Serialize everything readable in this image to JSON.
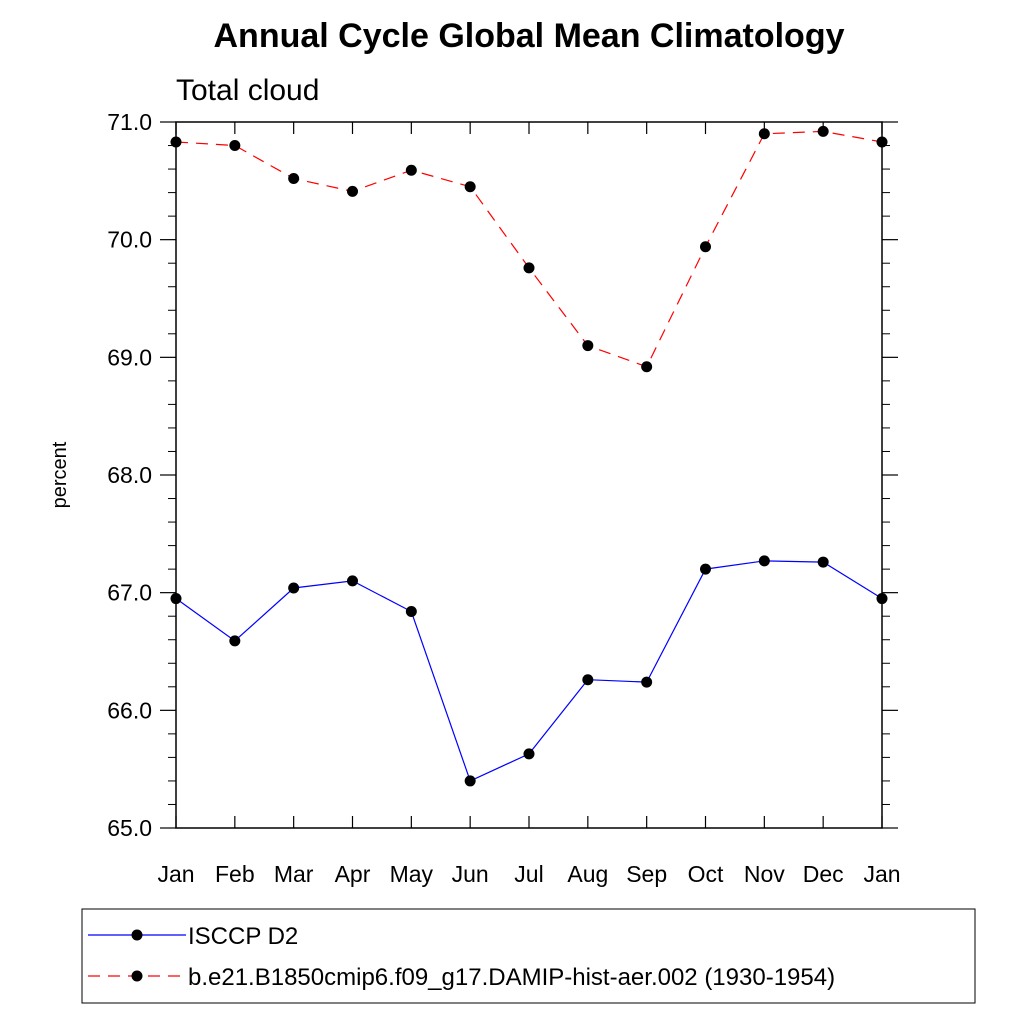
{
  "chart_data": {
    "type": "line",
    "title": "Annual Cycle Global Mean Climatology",
    "subtitle": "Total cloud",
    "xlabel": "",
    "ylabel": "percent",
    "categories": [
      "Jan",
      "Feb",
      "Mar",
      "Apr",
      "May",
      "Jun",
      "Jul",
      "Aug",
      "Sep",
      "Oct",
      "Nov",
      "Dec",
      "Jan"
    ],
    "ylim": [
      65.0,
      71.0
    ],
    "yticks": [
      "65.0",
      "66.0",
      "67.0",
      "68.0",
      "69.0",
      "70.0",
      "71.0"
    ],
    "grid": false,
    "legend_position": "bottom",
    "series": [
      {
        "name": "ISCCP D2",
        "color": "#0000ff",
        "dash": "solid",
        "marker": "filled-circle",
        "values": [
          66.95,
          66.59,
          67.04,
          67.1,
          66.84,
          65.4,
          65.63,
          66.26,
          66.24,
          67.2,
          67.27,
          67.26,
          66.95
        ]
      },
      {
        "name": "b.e21.B1850cmip6.f09_g17.DAMIP-hist-aer.002 (1930-1954)",
        "color": "#ff0000",
        "dash": "dashed",
        "marker": "filled-circle",
        "values": [
          70.83,
          70.8,
          70.52,
          70.41,
          70.59,
          70.45,
          69.76,
          69.1,
          68.92,
          69.94,
          70.9,
          70.92,
          70.83
        ]
      }
    ]
  }
}
